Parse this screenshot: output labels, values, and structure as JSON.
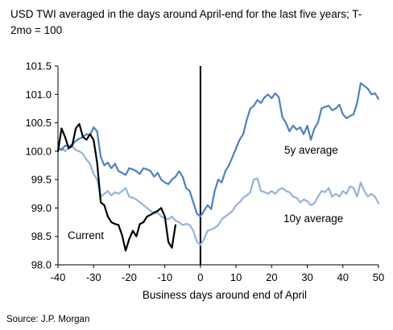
{
  "title": "USD TWI averaged in the days around April-end for the last five years; T-2mo = 100",
  "source": "Source: J.P. Morgan",
  "chart_data": {
    "type": "line",
    "title": "USD TWI averaged in the days around April-end for the last five years; T-2mo = 100",
    "xlabel": "Business days around end of April",
    "ylabel": "",
    "xlim": [
      -40,
      50
    ],
    "ylim": [
      98.0,
      101.5
    ],
    "x_ticks": [
      -40,
      -30,
      -20,
      -10,
      0,
      10,
      20,
      30,
      40,
      50
    ],
    "y_ticks": [
      "98.0",
      "98.5",
      "99.0",
      "99.5",
      "100.0",
      "100.5",
      "101.0",
      "101.5"
    ],
    "vertical_marker_x": 0,
    "series": [
      {
        "name": "5y average",
        "color": "#4f81bd",
        "points": [
          [
            -40,
            100.05
          ],
          [
            -39,
            100.02
          ],
          [
            -38,
            100.1
          ],
          [
            -37,
            100.08
          ],
          [
            -36,
            100.12
          ],
          [
            -35,
            100.18
          ],
          [
            -34,
            100.22
          ],
          [
            -33,
            100.25
          ],
          [
            -32,
            100.3
          ],
          [
            -31,
            100.28
          ],
          [
            -30,
            100.42
          ],
          [
            -29,
            100.35
          ],
          [
            -28,
            99.9
          ],
          [
            -27,
            99.75
          ],
          [
            -26,
            99.8
          ],
          [
            -25,
            99.7
          ],
          [
            -24,
            99.78
          ],
          [
            -23,
            99.65
          ],
          [
            -22,
            99.62
          ],
          [
            -21,
            99.58
          ],
          [
            -20,
            99.7
          ],
          [
            -19,
            99.68
          ],
          [
            -18,
            99.65
          ],
          [
            -17,
            99.6
          ],
          [
            -16,
            99.7
          ],
          [
            -15,
            99.68
          ],
          [
            -14,
            99.65
          ],
          [
            -13,
            99.55
          ],
          [
            -12,
            99.62
          ],
          [
            -11,
            99.5
          ],
          [
            -10,
            99.45
          ],
          [
            -9,
            99.42
          ],
          [
            -8,
            99.5
          ],
          [
            -7,
            99.55
          ],
          [
            -6,
            99.65
          ],
          [
            -5,
            99.55
          ],
          [
            -4,
            99.35
          ],
          [
            -3,
            99.3
          ],
          [
            -2,
            99.1
          ],
          [
            -1,
            98.9
          ],
          [
            0,
            98.85
          ],
          [
            1,
            98.95
          ],
          [
            2,
            99.05
          ],
          [
            3,
            98.98
          ],
          [
            4,
            99.3
          ],
          [
            5,
            99.5
          ],
          [
            6,
            99.45
          ],
          [
            7,
            99.65
          ],
          [
            8,
            99.75
          ],
          [
            9,
            99.9
          ],
          [
            10,
            100.05
          ],
          [
            11,
            100.2
          ],
          [
            12,
            100.3
          ],
          [
            13,
            100.55
          ],
          [
            14,
            100.75
          ],
          [
            15,
            100.8
          ],
          [
            16,
            100.9
          ],
          [
            17,
            100.85
          ],
          [
            18,
            100.95
          ],
          [
            19,
            101.0
          ],
          [
            20,
            100.93
          ],
          [
            21,
            101.02
          ],
          [
            22,
            100.95
          ],
          [
            23,
            100.6
          ],
          [
            24,
            100.5
          ],
          [
            25,
            100.35
          ],
          [
            26,
            100.45
          ],
          [
            27,
            100.38
          ],
          [
            28,
            100.42
          ],
          [
            29,
            100.3
          ],
          [
            30,
            100.45
          ],
          [
            31,
            100.2
          ],
          [
            32,
            100.4
          ],
          [
            33,
            100.5
          ],
          [
            34,
            100.75
          ],
          [
            35,
            100.78
          ],
          [
            36,
            100.8
          ],
          [
            37,
            100.72
          ],
          [
            38,
            100.75
          ],
          [
            39,
            100.82
          ],
          [
            40,
            100.65
          ],
          [
            41,
            100.58
          ],
          [
            42,
            100.62
          ],
          [
            43,
            100.65
          ],
          [
            44,
            100.85
          ],
          [
            45,
            101.2
          ],
          [
            46,
            101.15
          ],
          [
            47,
            101.1
          ],
          [
            48,
            101.0
          ],
          [
            49,
            101.02
          ],
          [
            50,
            100.92
          ]
        ]
      },
      {
        "name": "10y average",
        "color": "#95b3d7",
        "points": [
          [
            -40,
            100.02
          ],
          [
            -39,
            100.05
          ],
          [
            -38,
            100.0
          ],
          [
            -37,
            100.05
          ],
          [
            -36,
            100.08
          ],
          [
            -35,
            100.02
          ],
          [
            -34,
            100.0
          ],
          [
            -33,
            99.95
          ],
          [
            -32,
            99.85
          ],
          [
            -31,
            99.78
          ],
          [
            -30,
            99.6
          ],
          [
            -29,
            99.5
          ],
          [
            -28,
            99.2
          ],
          [
            -27,
            99.25
          ],
          [
            -26,
            99.3
          ],
          [
            -25,
            99.22
          ],
          [
            -24,
            99.28
          ],
          [
            -23,
            99.25
          ],
          [
            -22,
            99.3
          ],
          [
            -21,
            99.35
          ],
          [
            -20,
            99.2
          ],
          [
            -19,
            99.18
          ],
          [
            -18,
            99.15
          ],
          [
            -17,
            99.1
          ],
          [
            -16,
            99.05
          ],
          [
            -15,
            99.0
          ],
          [
            -14,
            98.95
          ],
          [
            -13,
            98.9
          ],
          [
            -12,
            98.92
          ],
          [
            -11,
            98.85
          ],
          [
            -10,
            98.82
          ],
          [
            -9,
            98.8
          ],
          [
            -8,
            98.85
          ],
          [
            -7,
            98.78
          ],
          [
            -6,
            98.75
          ],
          [
            -5,
            98.7
          ],
          [
            -4,
            98.72
          ],
          [
            -3,
            98.7
          ],
          [
            -2,
            98.6
          ],
          [
            -1,
            98.4
          ],
          [
            0,
            98.35
          ],
          [
            1,
            98.45
          ],
          [
            2,
            98.6
          ],
          [
            3,
            98.62
          ],
          [
            4,
            98.65
          ],
          [
            5,
            98.7
          ],
          [
            6,
            98.8
          ],
          [
            7,
            98.85
          ],
          [
            8,
            98.9
          ],
          [
            9,
            98.95
          ],
          [
            10,
            99.05
          ],
          [
            11,
            99.1
          ],
          [
            12,
            99.18
          ],
          [
            13,
            99.22
          ],
          [
            14,
            99.28
          ],
          [
            15,
            99.5
          ],
          [
            16,
            99.52
          ],
          [
            17,
            99.3
          ],
          [
            18,
            99.28
          ],
          [
            19,
            99.25
          ],
          [
            20,
            99.3
          ],
          [
            21,
            99.25
          ],
          [
            22,
            99.32
          ],
          [
            23,
            99.35
          ],
          [
            24,
            99.3
          ],
          [
            25,
            99.28
          ],
          [
            26,
            99.2
          ],
          [
            27,
            99.18
          ],
          [
            28,
            99.1
          ],
          [
            29,
            99.15
          ],
          [
            30,
            99.12
          ],
          [
            31,
            99.05
          ],
          [
            32,
            99.08
          ],
          [
            33,
            99.2
          ],
          [
            34,
            99.3
          ],
          [
            35,
            99.28
          ],
          [
            36,
            99.35
          ],
          [
            37,
            99.2
          ],
          [
            38,
            99.25
          ],
          [
            39,
            99.2
          ],
          [
            40,
            99.3
          ],
          [
            41,
            99.25
          ],
          [
            42,
            99.38
          ],
          [
            43,
            99.35
          ],
          [
            44,
            99.2
          ],
          [
            45,
            99.45
          ],
          [
            46,
            99.3
          ],
          [
            47,
            99.2
          ],
          [
            48,
            99.25
          ],
          [
            49,
            99.2
          ],
          [
            50,
            99.08
          ]
        ]
      },
      {
        "name": "Current",
        "color": "#000000",
        "points": [
          [
            -40,
            100.0
          ],
          [
            -39,
            100.4
          ],
          [
            -38,
            100.25
          ],
          [
            -37,
            100.05
          ],
          [
            -36,
            100.1
          ],
          [
            -35,
            100.4
          ],
          [
            -34,
            100.48
          ],
          [
            -33,
            100.25
          ],
          [
            -32,
            100.2
          ],
          [
            -31,
            100.3
          ],
          [
            -30,
            100.2
          ],
          [
            -29,
            99.8
          ],
          [
            -28,
            99.1
          ],
          [
            -27,
            99.05
          ],
          [
            -26,
            98.85
          ],
          [
            -25,
            98.75
          ],
          [
            -24,
            98.72
          ],
          [
            -23,
            98.7
          ],
          [
            -22,
            98.52
          ],
          [
            -21,
            98.25
          ],
          [
            -20,
            98.45
          ],
          [
            -19,
            98.6
          ],
          [
            -18,
            98.5
          ],
          [
            -17,
            98.72
          ],
          [
            -16,
            98.75
          ],
          [
            -15,
            98.85
          ],
          [
            -14,
            98.88
          ],
          [
            -13,
            98.92
          ],
          [
            -12,
            98.95
          ],
          [
            -11,
            99.0
          ],
          [
            -10,
            98.85
          ],
          [
            -9,
            98.4
          ],
          [
            -8,
            98.3
          ],
          [
            -7,
            98.7
          ]
        ]
      }
    ],
    "annotations": [
      {
        "text": "5y average",
        "series": "5y average"
      },
      {
        "text": "10y average",
        "series": "10y average"
      },
      {
        "text": "Current",
        "series": "Current"
      }
    ]
  }
}
